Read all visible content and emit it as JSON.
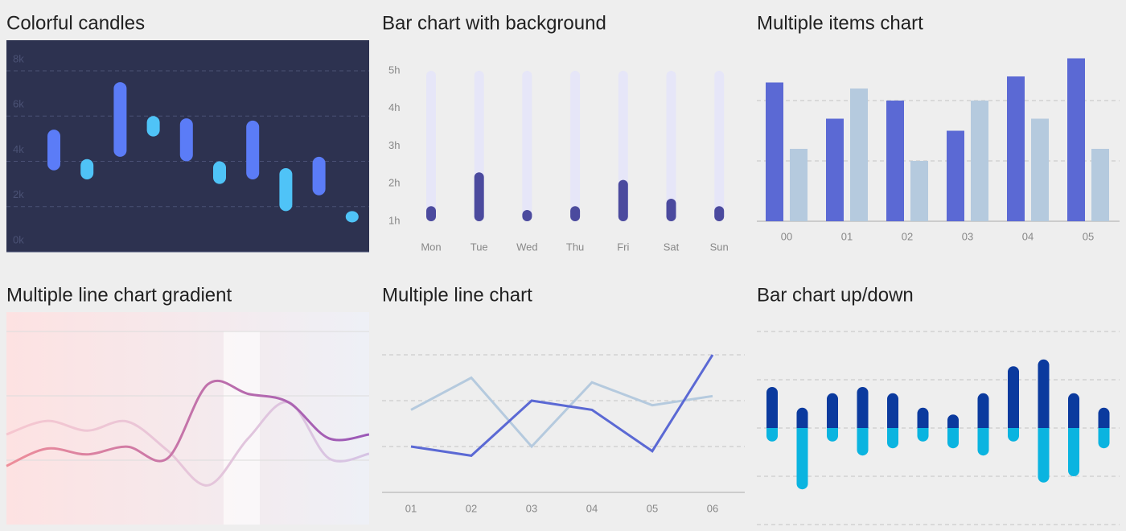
{
  "chart_data": [
    {
      "type": "range_bar",
      "title": "Colorful candles",
      "background": "#2d3250",
      "low": [
        3.6,
        3.2,
        4.2,
        5.1,
        4.0,
        3.0,
        3.2,
        1.8,
        2.5,
        1.3
      ],
      "high": [
        5.4,
        4.1,
        7.5,
        6.0,
        5.9,
        4.0,
        5.8,
        3.7,
        4.2,
        1.8
      ],
      "colors": [
        "#5b7cf7",
        "#4fc3f7",
        "#5b7cf7",
        "#4fc3f7",
        "#5b7cf7",
        "#4fc3f7",
        "#5b7cf7",
        "#4fc3f7",
        "#5b7cf7",
        "#4fc3f7"
      ],
      "ylim": [
        0,
        8
      ],
      "yticks": [
        {
          "value": 0,
          "label": "0k"
        },
        {
          "value": 2,
          "label": "2k"
        },
        {
          "value": 4,
          "label": "4k"
        },
        {
          "value": 6,
          "label": "6k"
        },
        {
          "value": 8,
          "label": "8k"
        }
      ],
      "grid": true
    },
    {
      "type": "bar",
      "title": "Bar chart with background",
      "categories": [
        "Mon",
        "Tue",
        "Wed",
        "Thu",
        "Fri",
        "Sat",
        "Sun"
      ],
      "values": [
        1.4,
        2.3,
        1.3,
        1.4,
        2.1,
        1.6,
        1.4
      ],
      "color": "#4b4a9e",
      "background_color": "#e6e6f8",
      "ylim": [
        1,
        5
      ],
      "yticks": [
        {
          "value": 1,
          "label": "1h"
        },
        {
          "value": 2,
          "label": "2h"
        },
        {
          "value": 3,
          "label": "3h"
        },
        {
          "value": 4,
          "label": "4h"
        },
        {
          "value": 5,
          "label": "5h"
        }
      ],
      "grid": false
    },
    {
      "type": "grouped_bar",
      "title": "Multiple items chart",
      "categories": [
        "00",
        "01",
        "02",
        "03",
        "04",
        "05"
      ],
      "series": [
        {
          "color": "#5b69d4",
          "values": [
            230,
            170,
            200,
            150,
            240,
            270
          ]
        },
        {
          "color": "#b5cade",
          "values": [
            120,
            220,
            100,
            200,
            170,
            120
          ]
        }
      ],
      "ylim": [
        0,
        300
      ],
      "yticks": [
        0,
        100,
        200
      ],
      "tick_labels": false,
      "grid": true
    },
    {
      "type": "smooth_line",
      "title": "Multiple line chart gradient",
      "categories": [
        null,
        null,
        null,
        null,
        null,
        null,
        null,
        null,
        null,
        null
      ],
      "series": [
        {
          "colors": [
            "#f6c6cf",
            "#d6c4e4"
          ],
          "values": [
            140,
            161,
            146,
            160,
            115,
            61,
            134,
            190,
            103,
            110
          ]
        },
        {
          "colors": [
            "#ee8e9a",
            "#9a58b8"
          ],
          "values": [
            91,
            118,
            109,
            121,
            103,
            218,
            203,
            190,
            134,
            140
          ]
        }
      ],
      "background_colors": [
        "#fde2e2",
        "#eef0f6"
      ],
      "ylim": [
        0,
        300
      ],
      "yticks": [
        100,
        200,
        300
      ],
      "tick_labels": false,
      "grid": true
    },
    {
      "type": "line",
      "title": "Multiple line chart",
      "categories": [
        "01",
        "02",
        "03",
        "04",
        "05",
        "06"
      ],
      "series": [
        {
          "color": "#b5cade",
          "values": [
            180,
            250,
            100,
            240,
            190,
            210
          ]
        },
        {
          "color": "#5b69d4",
          "values": [
            100,
            80,
            200,
            180,
            90,
            300
          ]
        }
      ],
      "ylim": [
        0,
        390
      ],
      "yticks": [
        0,
        100,
        200,
        300
      ],
      "tick_labels": false,
      "grid": true
    },
    {
      "type": "updown_bar",
      "title": "Bar chart up/down",
      "series": [
        {
          "color": "#0b3a9e",
          "values": [
            8.5,
            4.2,
            7.2,
            8.5,
            7.2,
            4.2,
            2.8,
            7.2,
            12.8,
            14.2,
            7.2,
            4.2
          ]
        },
        {
          "color": "#0ab4e0",
          "values": [
            -2.8,
            -12.7,
            -2.8,
            -5.7,
            -4.2,
            -2.8,
            -4.2,
            -5.7,
            -2.8,
            -11.3,
            -10,
            -4.2
          ]
        }
      ],
      "ylim": [
        -20,
        20
      ],
      "yticks": [
        -20,
        -10,
        0,
        10,
        20
      ],
      "tick_labels": false,
      "grid": true
    }
  ]
}
